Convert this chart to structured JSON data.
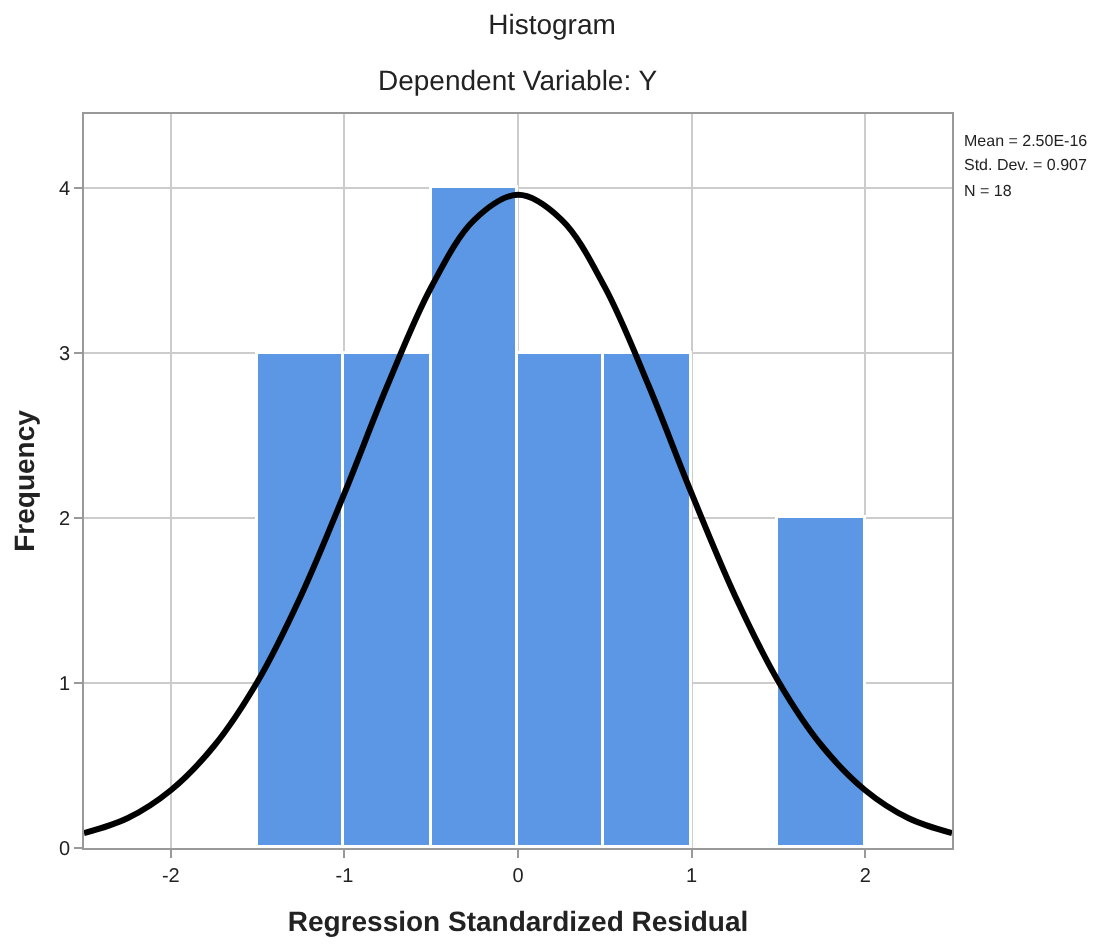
{
  "chart_data": {
    "type": "histogram",
    "title": "Histogram",
    "subtitle": "Dependent Variable: Y",
    "xlabel": "Regression Standardized Residual",
    "ylabel": "Frequency",
    "bins": [
      -1.5,
      -1,
      -0.5,
      0,
      0.5,
      1,
      1.5,
      2
    ],
    "values": [
      3,
      3,
      4,
      3,
      3,
      0,
      2
    ],
    "color": "#5b97e5",
    "series": [
      {
        "type": "line",
        "color": "#000000",
        "x": [
          -2.5,
          -2.25,
          -2,
          -1.75,
          -1.5,
          -1.25,
          -1,
          -0.75,
          -0.5,
          -0.25,
          0,
          0.25,
          0.5,
          0.75,
          1,
          1.25,
          1.5,
          1.75,
          2,
          2.25,
          2.5
        ],
        "values": [
          0.09,
          0.18,
          0.35,
          0.62,
          1.01,
          1.53,
          2.15,
          2.81,
          3.4,
          3.81,
          3.96,
          3.81,
          3.4,
          2.81,
          2.15,
          1.53,
          1.01,
          0.62,
          0.35,
          0.18,
          0.09
        ]
      }
    ],
    "xlim": [
      -2.5,
      2.5
    ],
    "xticks": [
      -2,
      -1,
      0,
      1,
      2
    ],
    "ylim": [
      0,
      4.45
    ],
    "yticks": [
      0,
      1,
      2,
      3,
      4
    ],
    "grid": true,
    "marker": "none",
    "line_style": "solid",
    "annotations": [
      "Mean = 2.50E-16",
      "Std. Dev. = 0.907",
      "N = 18"
    ]
  }
}
